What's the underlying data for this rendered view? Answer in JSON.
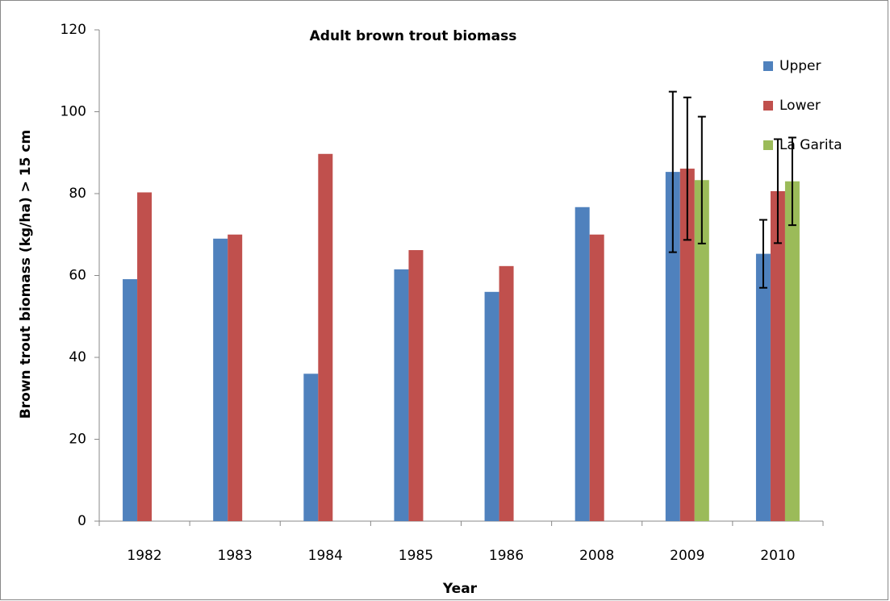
{
  "chart_data": {
    "type": "bar",
    "title": "Adult brown trout biomass",
    "x_label": "Year",
    "y_label": "Brown trout biomass (kg/ha) > 15 cm",
    "categories": [
      "1982",
      "1983",
      "1984",
      "1985",
      "1986",
      "2008",
      "2009",
      "2010"
    ],
    "series": [
      {
        "name": "Upper",
        "color": "#4f81bd",
        "values": [
          59.1,
          69,
          36,
          61.5,
          56,
          76.7,
          85.3,
          65.3
        ],
        "errors": [
          null,
          null,
          null,
          null,
          null,
          null,
          19.6,
          8.3
        ]
      },
      {
        "name": "Lower",
        "color": "#c0504d",
        "values": [
          80.3,
          70,
          89.7,
          66.2,
          62.3,
          70,
          86.1,
          80.6
        ],
        "errors": [
          null,
          null,
          null,
          null,
          null,
          null,
          17.4,
          12.7
        ]
      },
      {
        "name": "La Garita",
        "color": "#9bbb59",
        "values": [
          null,
          null,
          null,
          null,
          null,
          null,
          83.3,
          83
        ],
        "errors": [
          null,
          null,
          null,
          null,
          null,
          null,
          15.5,
          10.7
        ]
      }
    ],
    "ylim": [
      0,
      120
    ],
    "yticks": [
      0,
      20,
      40,
      60,
      80,
      100,
      120
    ],
    "legend": "right"
  }
}
